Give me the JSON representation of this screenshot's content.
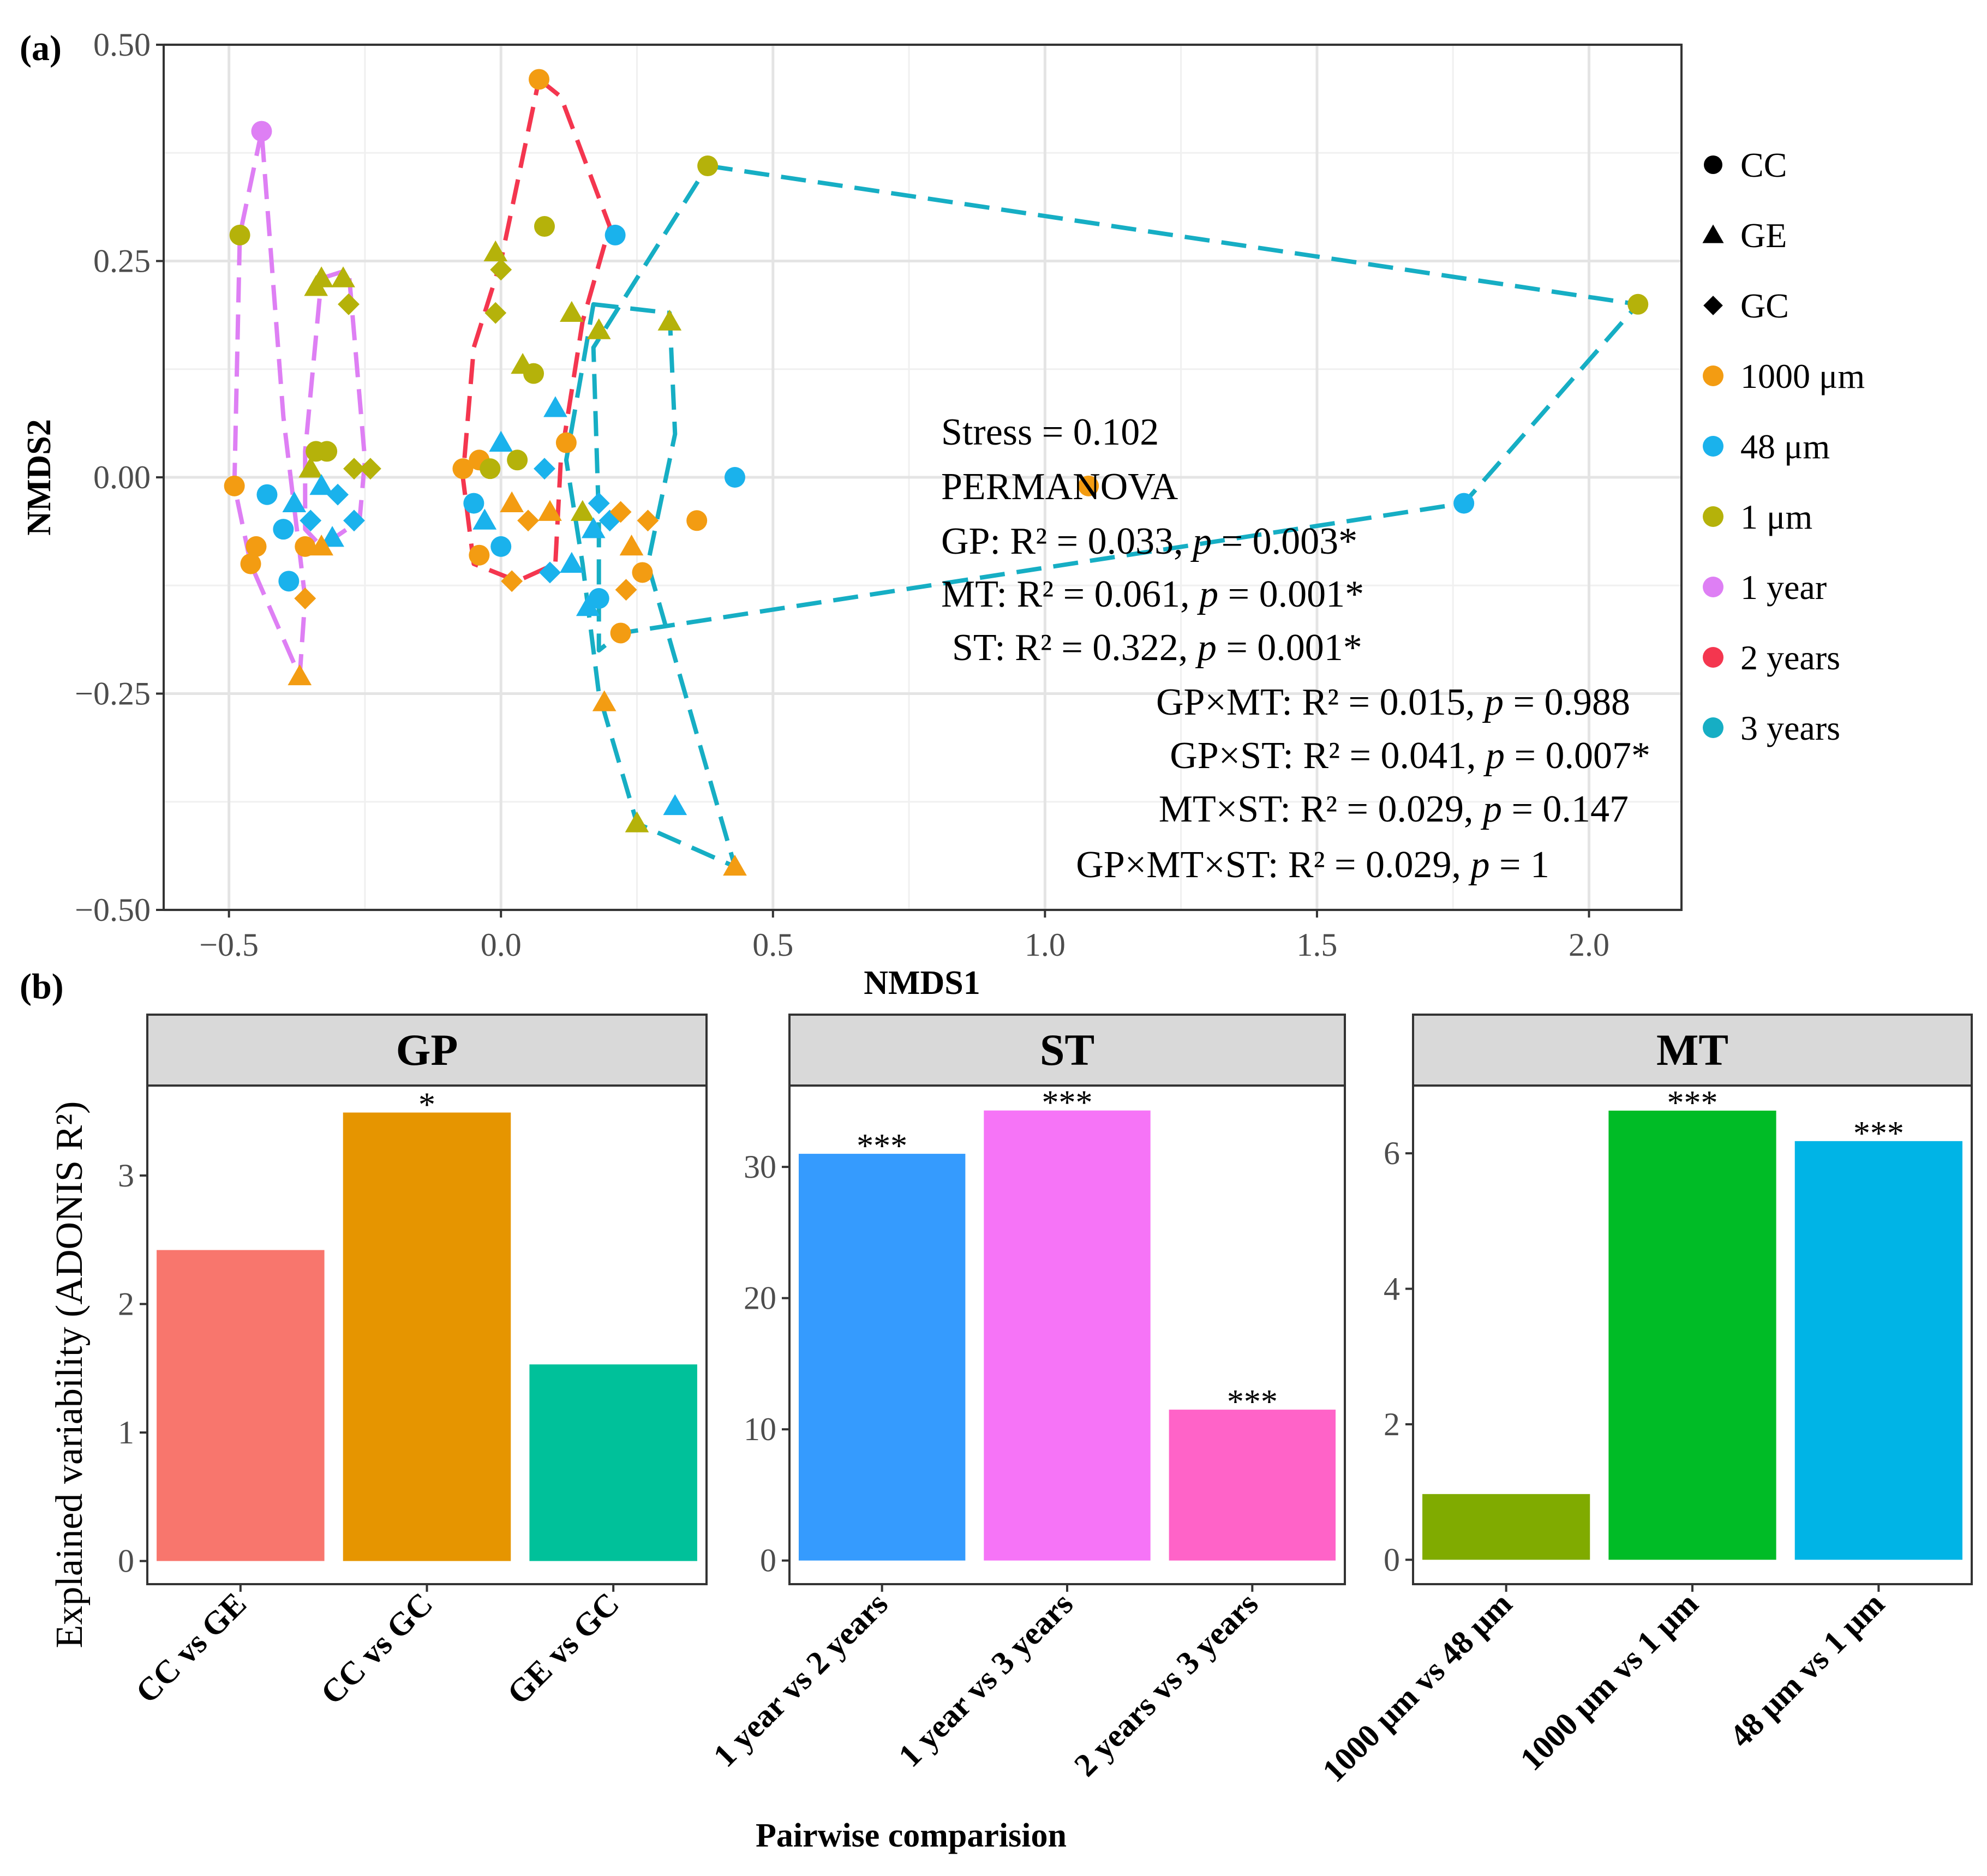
{
  "panel_labels": {
    "a": "(a)",
    "b": "(b)"
  },
  "chart_data": [
    {
      "type": "scatter",
      "panel": "(a)",
      "xlabel": "NMDS1",
      "ylabel": "NMDS2",
      "xlim": [
        -0.62,
        2.17
      ],
      "ylim": [
        -0.5,
        0.5
      ],
      "xticks": [
        -0.5,
        0.0,
        0.5,
        1.0,
        1.5,
        2.0
      ],
      "xtick_labels": [
        "−0.5",
        "0.0",
        "0.5",
        "1.0",
        "1.5",
        "2.0"
      ],
      "yticks": [
        0.5,
        0.25,
        0.0,
        -0.25,
        -0.5
      ],
      "ytick_labels": [
        "0.50",
        "0.25",
        "0.00",
        "−0.25",
        "−0.50"
      ],
      "grid": true,
      "legend_position": "right",
      "legend": [
        {
          "label": "CC",
          "kind": "shape",
          "shape": "circle"
        },
        {
          "label": "GE",
          "kind": "shape",
          "shape": "triangle"
        },
        {
          "label": "GC",
          "kind": "shape",
          "shape": "diamond"
        },
        {
          "label": "1000 μm",
          "kind": "color",
          "color": "#f39c12"
        },
        {
          "label": "48 μm",
          "kind": "color",
          "color": "#1ab2ec"
        },
        {
          "label": "1 μm",
          "kind": "color",
          "color": "#b5b20a"
        },
        {
          "label": "1 year",
          "kind": "color",
          "color": "#de7ff4"
        },
        {
          "label": "2 years",
          "kind": "color",
          "color": "#f4364f"
        },
        {
          "label": "3 years",
          "kind": "color",
          "color": "#16aec4"
        }
      ],
      "annotations": [
        "Stress = 0.102",
        "PERMANOVA",
        "GP: R² = 0.033, p = 0.003*",
        "MT: R² = 0.061, p = 0.001*",
        "ST: R² = 0.322, p = 0.001*",
        "GP×MT: R² = 0.015, p = 0.988",
        "GP×ST: R² = 0.041, p = 0.007*",
        "MT×ST: R² = 0.029, p = 0.147",
        "GP×MT×ST: R² = 0.029, p = 1"
      ],
      "hulls": [
        {
          "group": "1 year",
          "color": "#de7ff4",
          "points": [
            [
              -0.44,
              0.4
            ],
            [
              -0.48,
              0.28
            ],
            [
              -0.49,
              -0.01
            ],
            [
              -0.46,
              -0.1
            ],
            [
              -0.37,
              -0.23
            ],
            [
              -0.36,
              -0.14
            ],
            [
              -0.4,
              0.07
            ],
            [
              -0.44,
              0.4
            ]
          ]
        },
        {
          "group": "1 year",
          "color": "#de7ff4",
          "points": [
            [
              -0.33,
              0.23
            ],
            [
              -0.28,
              0.24
            ],
            [
              -0.25,
              0.02
            ],
            [
              -0.26,
              -0.05
            ],
            [
              -0.33,
              -0.08
            ],
            [
              -0.36,
              -0.06
            ],
            [
              -0.36,
              0.03
            ],
            [
              -0.33,
              0.23
            ]
          ]
        },
        {
          "group": "2 years",
          "color": "#f4364f",
          "points": [
            [
              0.07,
              0.46
            ],
            [
              0.11,
              0.44
            ],
            [
              0.2,
              0.29
            ],
            [
              0.15,
              0.18
            ],
            [
              0.11,
              0.02
            ],
            [
              0.1,
              -0.1
            ],
            [
              0.03,
              -0.12
            ],
            [
              -0.05,
              -0.1
            ],
            [
              -0.07,
              0.0
            ],
            [
              -0.05,
              0.15
            ],
            [
              0.0,
              0.25
            ],
            [
              0.07,
              0.46
            ]
          ]
        },
        {
          "group": "3 years",
          "color": "#16aec4",
          "points": [
            [
              0.38,
              0.36
            ],
            [
              2.09,
              0.2
            ],
            [
              1.77,
              -0.03
            ],
            [
              0.22,
              -0.18
            ],
            [
              0.18,
              -0.2
            ],
            [
              0.18,
              -0.05
            ],
            [
              0.17,
              0.15
            ],
            [
              0.38,
              0.36
            ]
          ]
        },
        {
          "group": "3 years",
          "color": "#16aec4",
          "points": [
            [
              0.17,
              0.2
            ],
            [
              0.31,
              0.19
            ],
            [
              0.32,
              0.05
            ],
            [
              0.27,
              -0.1
            ],
            [
              0.43,
              -0.45
            ],
            [
              0.25,
              -0.4
            ],
            [
              0.18,
              -0.25
            ],
            [
              0.15,
              -0.1
            ],
            [
              0.12,
              0.02
            ],
            [
              0.17,
              0.2
            ]
          ]
        }
      ],
      "points": [
        {
          "x": -0.44,
          "y": 0.4,
          "shape": "circle",
          "color": "#de7ff4"
        },
        {
          "x": -0.48,
          "y": 0.28,
          "shape": "circle",
          "color": "#b5b20a"
        },
        {
          "x": -0.49,
          "y": -0.01,
          "shape": "circle",
          "color": "#f39c12"
        },
        {
          "x": -0.43,
          "y": -0.02,
          "shape": "circle",
          "color": "#1ab2ec"
        },
        {
          "x": -0.46,
          "y": -0.1,
          "shape": "circle",
          "color": "#f39c12"
        },
        {
          "x": -0.45,
          "y": -0.08,
          "shape": "circle",
          "color": "#f39c12"
        },
        {
          "x": -0.4,
          "y": -0.06,
          "shape": "circle",
          "color": "#1ab2ec"
        },
        {
          "x": -0.39,
          "y": -0.12,
          "shape": "circle",
          "color": "#1ab2ec"
        },
        {
          "x": -0.37,
          "y": -0.23,
          "shape": "triangle",
          "color": "#f39c12"
        },
        {
          "x": -0.36,
          "y": -0.14,
          "shape": "diamond",
          "color": "#f39c12"
        },
        {
          "x": -0.38,
          "y": -0.03,
          "shape": "triangle",
          "color": "#1ab2ec"
        },
        {
          "x": -0.36,
          "y": -0.08,
          "shape": "circle",
          "color": "#f39c12"
        },
        {
          "x": -0.35,
          "y": -0.05,
          "shape": "diamond",
          "color": "#1ab2ec"
        },
        {
          "x": -0.34,
          "y": 0.22,
          "shape": "triangle",
          "color": "#b5b20a"
        },
        {
          "x": -0.33,
          "y": 0.23,
          "shape": "triangle",
          "color": "#b5b20a"
        },
        {
          "x": -0.29,
          "y": 0.23,
          "shape": "triangle",
          "color": "#b5b20a"
        },
        {
          "x": -0.28,
          "y": 0.2,
          "shape": "diamond",
          "color": "#b5b20a"
        },
        {
          "x": -0.34,
          "y": 0.03,
          "shape": "circle",
          "color": "#b5b20a"
        },
        {
          "x": -0.32,
          "y": 0.03,
          "shape": "circle",
          "color": "#b5b20a"
        },
        {
          "x": -0.35,
          "y": 0.01,
          "shape": "triangle",
          "color": "#b5b20a"
        },
        {
          "x": -0.33,
          "y": -0.01,
          "shape": "triangle",
          "color": "#1ab2ec"
        },
        {
          "x": -0.3,
          "y": -0.02,
          "shape": "diamond",
          "color": "#1ab2ec"
        },
        {
          "x": -0.31,
          "y": -0.07,
          "shape": "triangle",
          "color": "#1ab2ec"
        },
        {
          "x": -0.33,
          "y": -0.08,
          "shape": "triangle",
          "color": "#f39c12"
        },
        {
          "x": -0.27,
          "y": 0.01,
          "shape": "diamond",
          "color": "#b5b20a"
        },
        {
          "x": -0.24,
          "y": 0.01,
          "shape": "diamond",
          "color": "#b5b20a"
        },
        {
          "x": -0.27,
          "y": -0.05,
          "shape": "diamond",
          "color": "#1ab2ec"
        },
        {
          "x": 0.07,
          "y": 0.46,
          "shape": "circle",
          "color": "#f39c12"
        },
        {
          "x": 0.08,
          "y": 0.29,
          "shape": "circle",
          "color": "#b5b20a"
        },
        {
          "x": -0.01,
          "y": 0.26,
          "shape": "triangle",
          "color": "#b5b20a"
        },
        {
          "x": 0.0,
          "y": 0.24,
          "shape": "diamond",
          "color": "#b5b20a"
        },
        {
          "x": -0.01,
          "y": 0.19,
          "shape": "diamond",
          "color": "#b5b20a"
        },
        {
          "x": 0.04,
          "y": 0.13,
          "shape": "triangle",
          "color": "#b5b20a"
        },
        {
          "x": 0.06,
          "y": 0.12,
          "shape": "circle",
          "color": "#b5b20a"
        },
        {
          "x": 0.1,
          "y": 0.08,
          "shape": "triangle",
          "color": "#1ab2ec"
        },
        {
          "x": 0.0,
          "y": 0.04,
          "shape": "triangle",
          "color": "#1ab2ec"
        },
        {
          "x": -0.04,
          "y": 0.02,
          "shape": "circle",
          "color": "#f39c12"
        },
        {
          "x": -0.02,
          "y": 0.01,
          "shape": "circle",
          "color": "#b5b20a"
        },
        {
          "x": 0.03,
          "y": 0.02,
          "shape": "circle",
          "color": "#b5b20a"
        },
        {
          "x": 0.08,
          "y": 0.01,
          "shape": "diamond",
          "color": "#1ab2ec"
        },
        {
          "x": -0.07,
          "y": 0.01,
          "shape": "circle",
          "color": "#f39c12"
        },
        {
          "x": -0.05,
          "y": -0.03,
          "shape": "circle",
          "color": "#1ab2ec"
        },
        {
          "x": -0.03,
          "y": -0.05,
          "shape": "triangle",
          "color": "#1ab2ec"
        },
        {
          "x": 0.02,
          "y": -0.03,
          "shape": "triangle",
          "color": "#f39c12"
        },
        {
          "x": 0.05,
          "y": -0.05,
          "shape": "diamond",
          "color": "#f39c12"
        },
        {
          "x": -0.04,
          "y": -0.09,
          "shape": "circle",
          "color": "#f39c12"
        },
        {
          "x": 0.0,
          "y": -0.08,
          "shape": "circle",
          "color": "#1ab2ec"
        },
        {
          "x": 0.02,
          "y": -0.12,
          "shape": "diamond",
          "color": "#f39c12"
        },
        {
          "x": 0.09,
          "y": -0.04,
          "shape": "triangle",
          "color": "#f39c12"
        },
        {
          "x": 0.21,
          "y": 0.28,
          "shape": "circle",
          "color": "#1ab2ec"
        },
        {
          "x": 0.13,
          "y": 0.19,
          "shape": "triangle",
          "color": "#b5b20a"
        },
        {
          "x": 0.18,
          "y": 0.17,
          "shape": "triangle",
          "color": "#b5b20a"
        },
        {
          "x": 0.31,
          "y": 0.18,
          "shape": "triangle",
          "color": "#b5b20a"
        },
        {
          "x": 0.38,
          "y": 0.36,
          "shape": "circle",
          "color": "#b5b20a"
        },
        {
          "x": 2.09,
          "y": 0.2,
          "shape": "circle",
          "color": "#b5b20a"
        },
        {
          "x": 1.08,
          "y": -0.01,
          "shape": "circle",
          "color": "#f39c12"
        },
        {
          "x": 1.77,
          "y": -0.03,
          "shape": "circle",
          "color": "#1ab2ec"
        },
        {
          "x": 0.43,
          "y": 0.0,
          "shape": "circle",
          "color": "#1ab2ec"
        },
        {
          "x": 0.36,
          "y": -0.05,
          "shape": "circle",
          "color": "#f39c12"
        },
        {
          "x": 0.18,
          "y": -0.03,
          "shape": "diamond",
          "color": "#1ab2ec"
        },
        {
          "x": 0.15,
          "y": -0.04,
          "shape": "triangle",
          "color": "#b5b20a"
        },
        {
          "x": 0.2,
          "y": -0.05,
          "shape": "diamond",
          "color": "#1ab2ec"
        },
        {
          "x": 0.22,
          "y": -0.04,
          "shape": "diamond",
          "color": "#f39c12"
        },
        {
          "x": 0.27,
          "y": -0.05,
          "shape": "diamond",
          "color": "#f39c12"
        },
        {
          "x": 0.17,
          "y": -0.06,
          "shape": "triangle",
          "color": "#1ab2ec"
        },
        {
          "x": 0.24,
          "y": -0.08,
          "shape": "triangle",
          "color": "#f39c12"
        },
        {
          "x": 0.13,
          "y": -0.1,
          "shape": "triangle",
          "color": "#1ab2ec"
        },
        {
          "x": 0.09,
          "y": -0.11,
          "shape": "diamond",
          "color": "#1ab2ec"
        },
        {
          "x": 0.26,
          "y": -0.11,
          "shape": "circle",
          "color": "#f39c12"
        },
        {
          "x": 0.23,
          "y": -0.13,
          "shape": "diamond",
          "color": "#f39c12"
        },
        {
          "x": 0.18,
          "y": -0.14,
          "shape": "circle",
          "color": "#1ab2ec"
        },
        {
          "x": 0.16,
          "y": -0.15,
          "shape": "triangle",
          "color": "#1ab2ec"
        },
        {
          "x": 0.22,
          "y": -0.18,
          "shape": "circle",
          "color": "#f39c12"
        },
        {
          "x": 0.19,
          "y": -0.26,
          "shape": "triangle",
          "color": "#f39c12"
        },
        {
          "x": 0.32,
          "y": -0.38,
          "shape": "triangle",
          "color": "#1ab2ec"
        },
        {
          "x": 0.25,
          "y": -0.4,
          "shape": "triangle",
          "color": "#b5b20a"
        },
        {
          "x": 0.43,
          "y": -0.45,
          "shape": "triangle",
          "color": "#f39c12"
        },
        {
          "x": 0.12,
          "y": 0.04,
          "shape": "circle",
          "color": "#f39c12"
        }
      ]
    },
    {
      "type": "bar",
      "panel": "(b)",
      "facet": "GP",
      "ylabel": "Explained variability (ADONIS R²)",
      "xlabel": "Pairwise comparision",
      "ylim": [
        -0.18,
        3.7
      ],
      "yticks": [
        0,
        1,
        2,
        3
      ],
      "categories": [
        "CC vs GE",
        "CC vs GC",
        "GE vs GC"
      ],
      "values": [
        2.42,
        3.49,
        1.53
      ],
      "labels": [
        "",
        "*",
        ""
      ],
      "colors": [
        "#f8766d",
        "#e69500",
        "#00c19a"
      ]
    },
    {
      "type": "bar",
      "panel": "(b)",
      "facet": "ST",
      "ylim": [
        -1.8,
        36.2
      ],
      "yticks": [
        0,
        10,
        20,
        30
      ],
      "categories": [
        "1 year vs 2 years",
        "1 year vs 3 years",
        "2 years vs 3 years"
      ],
      "values": [
        31.0,
        34.3,
        11.5
      ],
      "labels": [
        "***",
        "***",
        "***"
      ],
      "colors": [
        "#359bfe",
        "#f674f7",
        "#ff63c8"
      ]
    },
    {
      "type": "bar",
      "panel": "(b)",
      "facet": "MT",
      "ylim": [
        -0.36,
        7.0
      ],
      "yticks": [
        0,
        2,
        4,
        6
      ],
      "categories": [
        "1000 μm vs 48 μm",
        "1000 μm vs 1 μm",
        "48 μm vs 1 μm"
      ],
      "values": [
        0.97,
        6.63,
        6.18
      ],
      "labels": [
        "",
        "***",
        "***"
      ],
      "colors": [
        "#80ab00",
        "#00bc26",
        "#00b4e6"
      ]
    }
  ]
}
